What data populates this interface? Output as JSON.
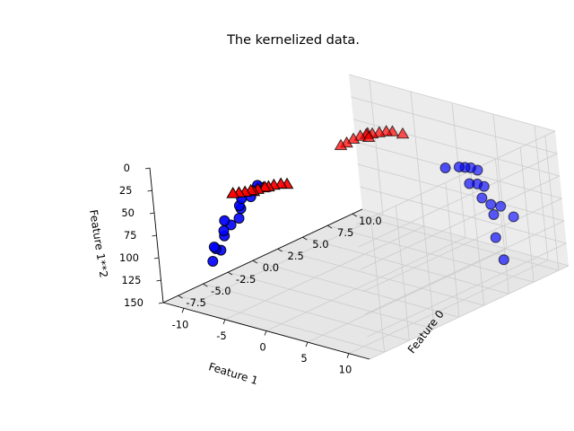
{
  "chart_data": {
    "type": "scatter3d",
    "title": "The kernelized data.",
    "xlabel": "Feature 0",
    "ylabel": "Feature 1",
    "zlabel": "Feature 1**2",
    "xlim": [
      -9,
      11
    ],
    "ylim": [
      -12.5,
      12.5
    ],
    "zlim": [
      0,
      150
    ],
    "zaxis_inverted": true,
    "grid": true,
    "x_ticks": [
      "-7.5",
      "-5.0",
      "-2.5",
      "0.0",
      "2.5",
      "5.0",
      "7.5",
      "10.0"
    ],
    "y_ticks": [
      "-10",
      "-5",
      "0",
      "5",
      "10"
    ],
    "z_ticks": [
      "0",
      "25",
      "50",
      "75",
      "100",
      "125",
      "150"
    ],
    "series": [
      {
        "marker": "triangle",
        "color": "#ff0000",
        "points": [
          [
            -8.2,
            -3.5,
            10
          ],
          [
            -8.0,
            -3.0,
            9
          ],
          [
            -7.8,
            -2.5,
            8
          ],
          [
            -7.6,
            -2.0,
            6
          ],
          [
            -7.3,
            -1.5,
            5
          ],
          [
            -7.0,
            -1.2,
            4
          ],
          [
            -6.8,
            -0.8,
            3
          ],
          [
            -6.5,
            -0.5,
            2
          ],
          [
            -6.2,
            0.0,
            1
          ],
          [
            -6.0,
            0.5,
            1
          ],
          [
            -7.5,
            -1.8,
            7
          ],
          [
            -7.0,
            -1.0,
            3
          ],
          [
            3.0,
            -4.0,
            16
          ],
          [
            3.2,
            -3.5,
            13
          ],
          [
            3.5,
            -3.0,
            9
          ],
          [
            3.8,
            -2.5,
            6
          ],
          [
            4.0,
            -2.0,
            4
          ],
          [
            4.2,
            -1.5,
            3
          ],
          [
            4.5,
            -1.0,
            2
          ],
          [
            4.8,
            -0.5,
            1
          ],
          [
            5.0,
            0.0,
            1
          ],
          [
            5.2,
            1.0,
            2
          ],
          [
            4.3,
            -2.2,
            5
          ],
          [
            3.6,
            -1.2,
            3
          ]
        ]
      },
      {
        "marker": "circle",
        "color": "#0000ff",
        "points": [
          [
            -5.0,
            -11.0,
            121
          ],
          [
            -4.5,
            -10.5,
            110
          ],
          [
            -5.5,
            -10.0,
            100
          ],
          [
            -4.8,
            -9.5,
            90
          ],
          [
            -5.2,
            -9.0,
            81
          ],
          [
            -4.0,
            -8.5,
            72
          ],
          [
            -5.8,
            -8.0,
            64
          ],
          [
            -4.5,
            -7.5,
            56
          ],
          [
            -5.0,
            -7.0,
            49
          ],
          [
            -4.2,
            -6.5,
            42
          ],
          [
            -5.5,
            -6.0,
            36
          ],
          [
            -4.0,
            -5.5,
            30
          ],
          [
            -5.0,
            -4.5,
            20
          ],
          [
            -5.2,
            -10.2,
            104
          ],
          [
            -4.6,
            -8.8,
            77
          ],
          [
            7.0,
            9.0,
            81
          ],
          [
            7.2,
            8.5,
            72
          ],
          [
            6.8,
            8.0,
            64
          ],
          [
            7.5,
            7.5,
            56
          ],
          [
            6.5,
            7.0,
            49
          ],
          [
            7.8,
            6.5,
            42
          ],
          [
            7.0,
            6.0,
            36
          ],
          [
            6.6,
            5.8,
            34
          ],
          [
            7.4,
            6.2,
            38
          ],
          [
            6.2,
            10.0,
            100
          ],
          [
            8.5,
            9.5,
            90
          ],
          [
            5.5,
            5.5,
            30
          ],
          [
            6.0,
            11.0,
            121
          ],
          [
            7.9,
            8.8,
            77
          ],
          [
            7.1,
            7.2,
            52
          ]
        ]
      }
    ]
  }
}
